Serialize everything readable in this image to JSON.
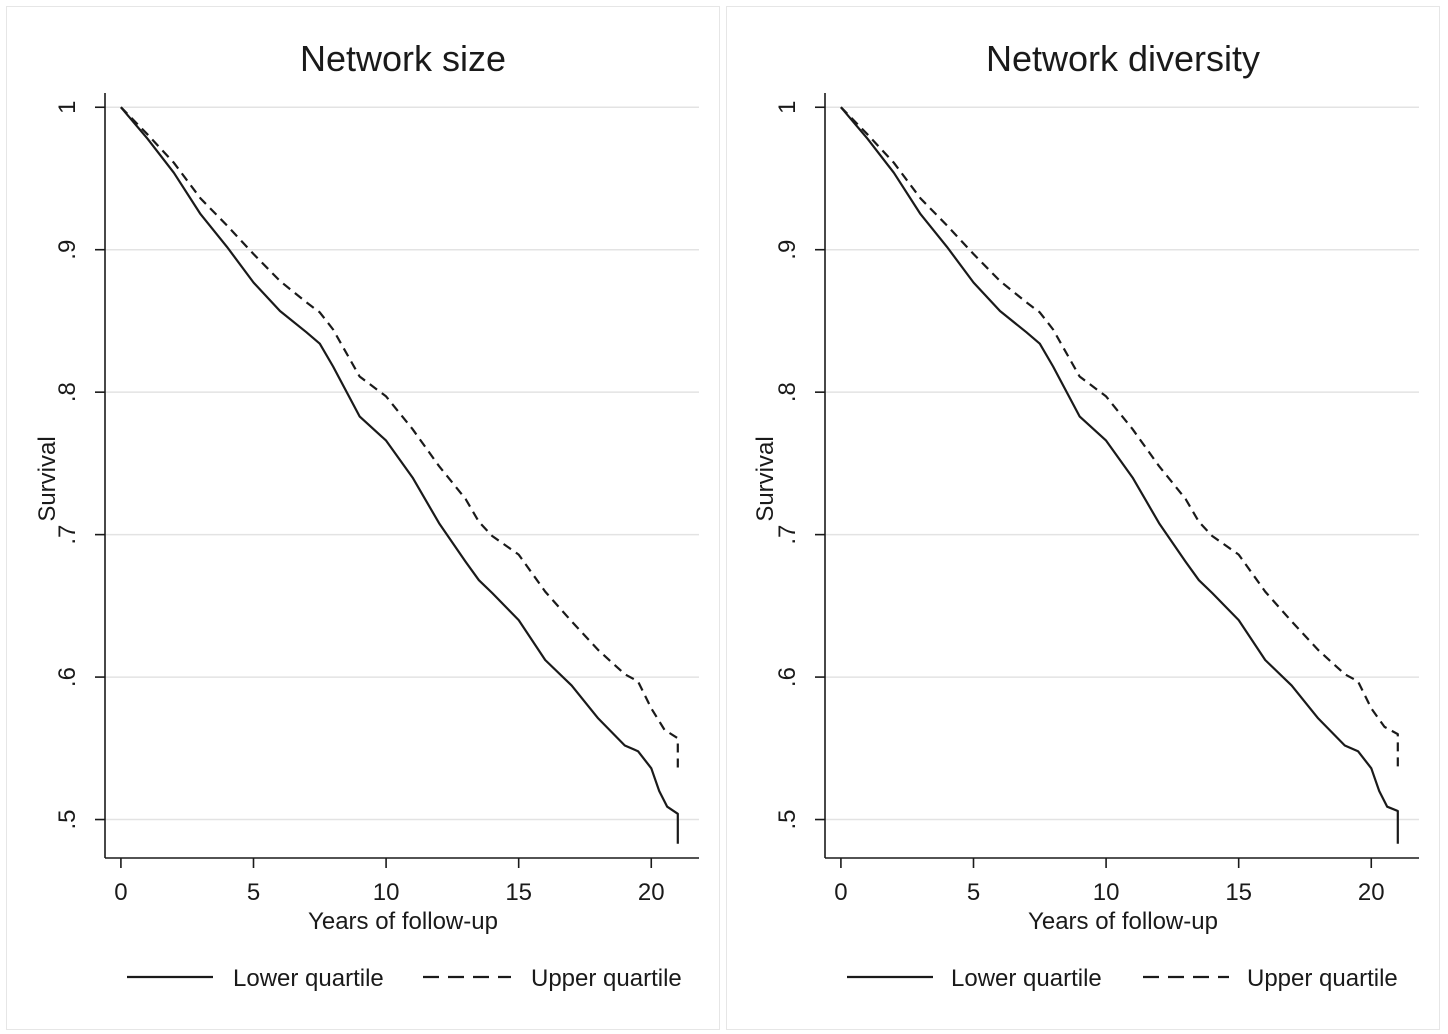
{
  "chart_data": [
    {
      "type": "line",
      "title": "Network size",
      "xlabel": "Years of follow-up",
      "ylabel": "Survival",
      "xlim": [
        -0.6,
        21.8
      ],
      "ylim": [
        0.473,
        1.01
      ],
      "xticks": [
        0,
        5,
        10,
        15,
        20
      ],
      "xtick_labels": [
        "0",
        "5",
        "10",
        "15",
        "20"
      ],
      "yticks": [
        0.5,
        0.6,
        0.7,
        0.8,
        0.9,
        1
      ],
      "ytick_labels": [
        ".5",
        ".6",
        ".7",
        ".8",
        ".9",
        "1"
      ],
      "grid": true,
      "legend_position": "bottom",
      "series": [
        {
          "name": "Lower quartile",
          "line_style": "solid",
          "color": "#1a1a1a",
          "x": [
            0,
            1,
            2,
            3,
            4,
            5,
            6,
            7,
            7.5,
            8,
            9,
            10,
            11,
            12,
            13,
            13.5,
            14,
            15,
            16,
            17,
            18,
            19,
            19.5,
            20,
            20.3,
            20.6,
            21,
            21,
            21
          ],
          "y": [
            1.0,
            0.978,
            0.954,
            0.925,
            0.902,
            0.877,
            0.857,
            0.842,
            0.834,
            0.818,
            0.783,
            0.766,
            0.74,
            0.708,
            0.681,
            0.668,
            0.659,
            0.64,
            0.612,
            0.594,
            0.571,
            0.552,
            0.548,
            0.536,
            0.52,
            0.509,
            0.504,
            0.495,
            0.483
          ]
        },
        {
          "name": "Upper quartile",
          "line_style": "dashed",
          "color": "#1a1a1a",
          "x": [
            0,
            1,
            2,
            3,
            4,
            5,
            6,
            7,
            7.5,
            8,
            9,
            10,
            11,
            12,
            13,
            13.5,
            14,
            15,
            16,
            17,
            18,
            19,
            19.5,
            20,
            20.5,
            21,
            21,
            21
          ],
          "y": [
            1.0,
            0.981,
            0.961,
            0.936,
            0.917,
            0.897,
            0.878,
            0.863,
            0.856,
            0.844,
            0.811,
            0.797,
            0.774,
            0.748,
            0.725,
            0.709,
            0.699,
            0.686,
            0.66,
            0.639,
            0.619,
            0.602,
            0.597,
            0.578,
            0.563,
            0.557,
            0.545,
            0.535
          ]
        }
      ]
    },
    {
      "type": "line",
      "title": "Network diversity",
      "xlabel": "Years of follow-up",
      "ylabel": "Survival",
      "xlim": [
        -0.6,
        21.8
      ],
      "ylim": [
        0.473,
        1.01
      ],
      "xticks": [
        0,
        5,
        10,
        15,
        20
      ],
      "xtick_labels": [
        "0",
        "5",
        "10",
        "15",
        "20"
      ],
      "yticks": [
        0.5,
        0.6,
        0.7,
        0.8,
        0.9,
        1
      ],
      "ytick_labels": [
        ".5",
        ".6",
        ".7",
        ".8",
        ".9",
        "1"
      ],
      "grid": true,
      "legend_position": "bottom",
      "series": [
        {
          "name": "Lower quartile",
          "line_style": "solid",
          "color": "#1a1a1a",
          "x": [
            0,
            1,
            2,
            3,
            4,
            5,
            6,
            7,
            7.5,
            8,
            9,
            10,
            11,
            12,
            13,
            13.5,
            14,
            15,
            16,
            17,
            18,
            19,
            19.5,
            20,
            20.3,
            20.6,
            21,
            21,
            21
          ],
          "y": [
            1.0,
            0.978,
            0.954,
            0.925,
            0.902,
            0.877,
            0.857,
            0.842,
            0.834,
            0.818,
            0.783,
            0.766,
            0.74,
            0.708,
            0.681,
            0.668,
            0.659,
            0.64,
            0.612,
            0.594,
            0.571,
            0.552,
            0.548,
            0.536,
            0.52,
            0.509,
            0.506,
            0.495,
            0.483
          ]
        },
        {
          "name": "Upper quartile",
          "line_style": "dashed",
          "color": "#1a1a1a",
          "x": [
            0,
            1,
            2,
            3,
            4,
            5,
            6,
            7,
            7.5,
            8,
            9,
            10,
            11,
            12,
            13,
            13.5,
            14,
            15,
            16,
            17,
            18,
            19,
            19.5,
            20,
            20.5,
            21,
            21,
            21
          ],
          "y": [
            1.0,
            0.981,
            0.961,
            0.936,
            0.917,
            0.897,
            0.878,
            0.863,
            0.856,
            0.844,
            0.811,
            0.797,
            0.774,
            0.748,
            0.725,
            0.709,
            0.699,
            0.686,
            0.66,
            0.639,
            0.619,
            0.602,
            0.597,
            0.578,
            0.565,
            0.56,
            0.548,
            0.537
          ]
        }
      ]
    }
  ]
}
